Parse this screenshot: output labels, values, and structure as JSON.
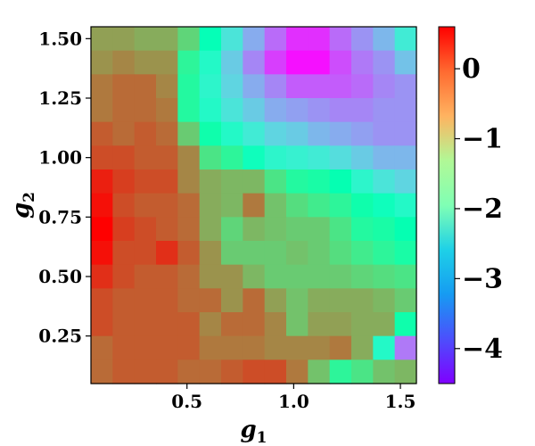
{
  "chart_data": {
    "type": "heatmap",
    "xlabel": "g1",
    "ylabel": "g2",
    "x_ticks": [
      "0.5",
      "1.0",
      "1.5"
    ],
    "x_tick_values": [
      0.5,
      1.0,
      1.5
    ],
    "y_ticks": [
      "0.25",
      "0.50",
      "0.75",
      "1.00",
      "1.25",
      "1.50"
    ],
    "y_tick_values": [
      0.25,
      0.5,
      0.75,
      1.0,
      1.25,
      1.5
    ],
    "colorbar_ticks": [
      "0",
      "−1",
      "−2",
      "−3",
      "−4"
    ],
    "colorbar_tick_values": [
      0,
      -1,
      -2,
      -3,
      -4
    ],
    "colorbar_range": [
      -4.5,
      0.6
    ],
    "colormap": "rainbow",
    "xlim": [
      0.05,
      1.575
    ],
    "ylim": [
      0.05,
      1.55
    ],
    "x_centers": [
      0.1,
      0.2,
      0.3,
      0.4,
      0.5,
      0.6,
      0.7,
      0.8,
      0.9,
      1.0,
      1.1,
      1.2,
      1.3,
      1.4,
      1.5
    ],
    "y_centers": [
      1.5,
      1.4,
      1.3,
      1.2,
      1.1,
      1.0,
      0.9,
      0.8,
      0.7,
      0.6,
      0.5,
      0.4,
      0.3,
      0.2,
      0.1
    ],
    "z": [
      [
        -0.5,
        -0.5,
        -0.6,
        -0.6,
        -1.0,
        -2.0,
        -2.7,
        -3.3,
        -3.8,
        -4.2,
        -4.2,
        -3.8,
        -3.5,
        -3.2,
        -2.6
      ],
      [
        -0.4,
        -0.3,
        -0.4,
        -0.4,
        -1.5,
        -2.3,
        -3.0,
        -3.6,
        -4.1,
        -4.4,
        -4.4,
        -4.0,
        -3.7,
        -3.5,
        -3.1
      ],
      [
        -0.2,
        -0.1,
        -0.1,
        -0.3,
        -1.6,
        -2.4,
        -2.9,
        -3.3,
        -3.6,
        -3.9,
        -3.9,
        -3.9,
        -3.8,
        -3.6,
        -3.5
      ],
      [
        -0.2,
        -0.1,
        -0.1,
        -0.2,
        -1.6,
        -2.3,
        -2.7,
        -3.0,
        -3.3,
        -3.4,
        -3.5,
        -3.6,
        -3.6,
        -3.5,
        -3.5
      ],
      [
        0.0,
        -0.1,
        0.0,
        -0.1,
        -0.9,
        -1.8,
        -2.3,
        -2.6,
        -2.9,
        -3.0,
        -3.2,
        -3.3,
        -3.4,
        -3.5,
        -3.5
      ],
      [
        0.1,
        0.1,
        0.0,
        0.0,
        -0.3,
        -1.2,
        -1.5,
        -2.1,
        -2.4,
        -2.5,
        -2.6,
        -2.8,
        -3.0,
        -3.2,
        -3.2
      ],
      [
        0.4,
        0.2,
        0.1,
        0.1,
        -0.3,
        -0.6,
        -0.7,
        -0.7,
        -1.2,
        -1.6,
        -1.7,
        -1.9,
        -2.4,
        -2.7,
        -2.9
      ],
      [
        0.5,
        0.1,
        0.0,
        0.0,
        -0.1,
        -0.6,
        -0.7,
        -0.2,
        -0.8,
        -1.1,
        -1.3,
        -1.5,
        -1.8,
        -2.1,
        -2.3
      ],
      [
        0.6,
        0.2,
        0.1,
        0.0,
        -0.1,
        -0.6,
        -1.0,
        -0.7,
        -0.8,
        -0.9,
        -0.9,
        -1.2,
        -1.6,
        -1.7,
        -1.9
      ],
      [
        0.5,
        0.1,
        0.1,
        0.3,
        0.0,
        -0.4,
        -0.9,
        -0.9,
        -0.9,
        -0.8,
        -0.9,
        -1.1,
        -1.3,
        -1.5,
        -1.7
      ],
      [
        0.3,
        0.1,
        0.0,
        0.0,
        -0.1,
        -0.4,
        -0.4,
        -0.7,
        -0.9,
        -0.9,
        -0.9,
        -0.9,
        -1.0,
        -1.1,
        -1.2
      ],
      [
        0.1,
        0.0,
        0.0,
        0.0,
        -0.1,
        -0.1,
        -0.4,
        -0.1,
        -0.5,
        -0.8,
        -0.6,
        -0.6,
        -0.6,
        -0.7,
        -0.9
      ],
      [
        0.1,
        0.0,
        0.0,
        0.0,
        0.0,
        -0.3,
        -0.1,
        -0.1,
        -0.3,
        -0.8,
        -0.5,
        -0.5,
        -0.6,
        -0.6,
        -1.8
      ],
      [
        -0.1,
        0.0,
        0.0,
        0.0,
        0.0,
        -0.2,
        -0.2,
        -0.2,
        -0.3,
        -0.3,
        -0.3,
        -0.2,
        -0.6,
        -2.3,
        -3.7
      ],
      [
        -0.1,
        0.0,
        0.0,
        0.0,
        -0.1,
        -0.1,
        0.0,
        0.1,
        0.1,
        -0.2,
        -0.8,
        -1.5,
        -1.2,
        -0.8,
        -0.7
      ]
    ]
  }
}
